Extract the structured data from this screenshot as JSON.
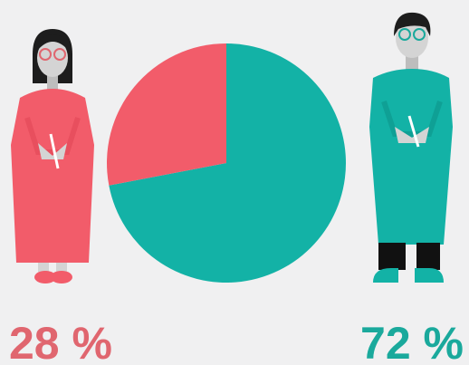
{
  "chart_data": {
    "type": "pie",
    "values": [
      28,
      72
    ],
    "value_labels": [
      "28 %",
      "72 %"
    ],
    "colors": [
      "#f25c6a",
      "#13b2a6"
    ],
    "label_colors": [
      "#e0666f",
      "#1aa99c"
    ]
  }
}
